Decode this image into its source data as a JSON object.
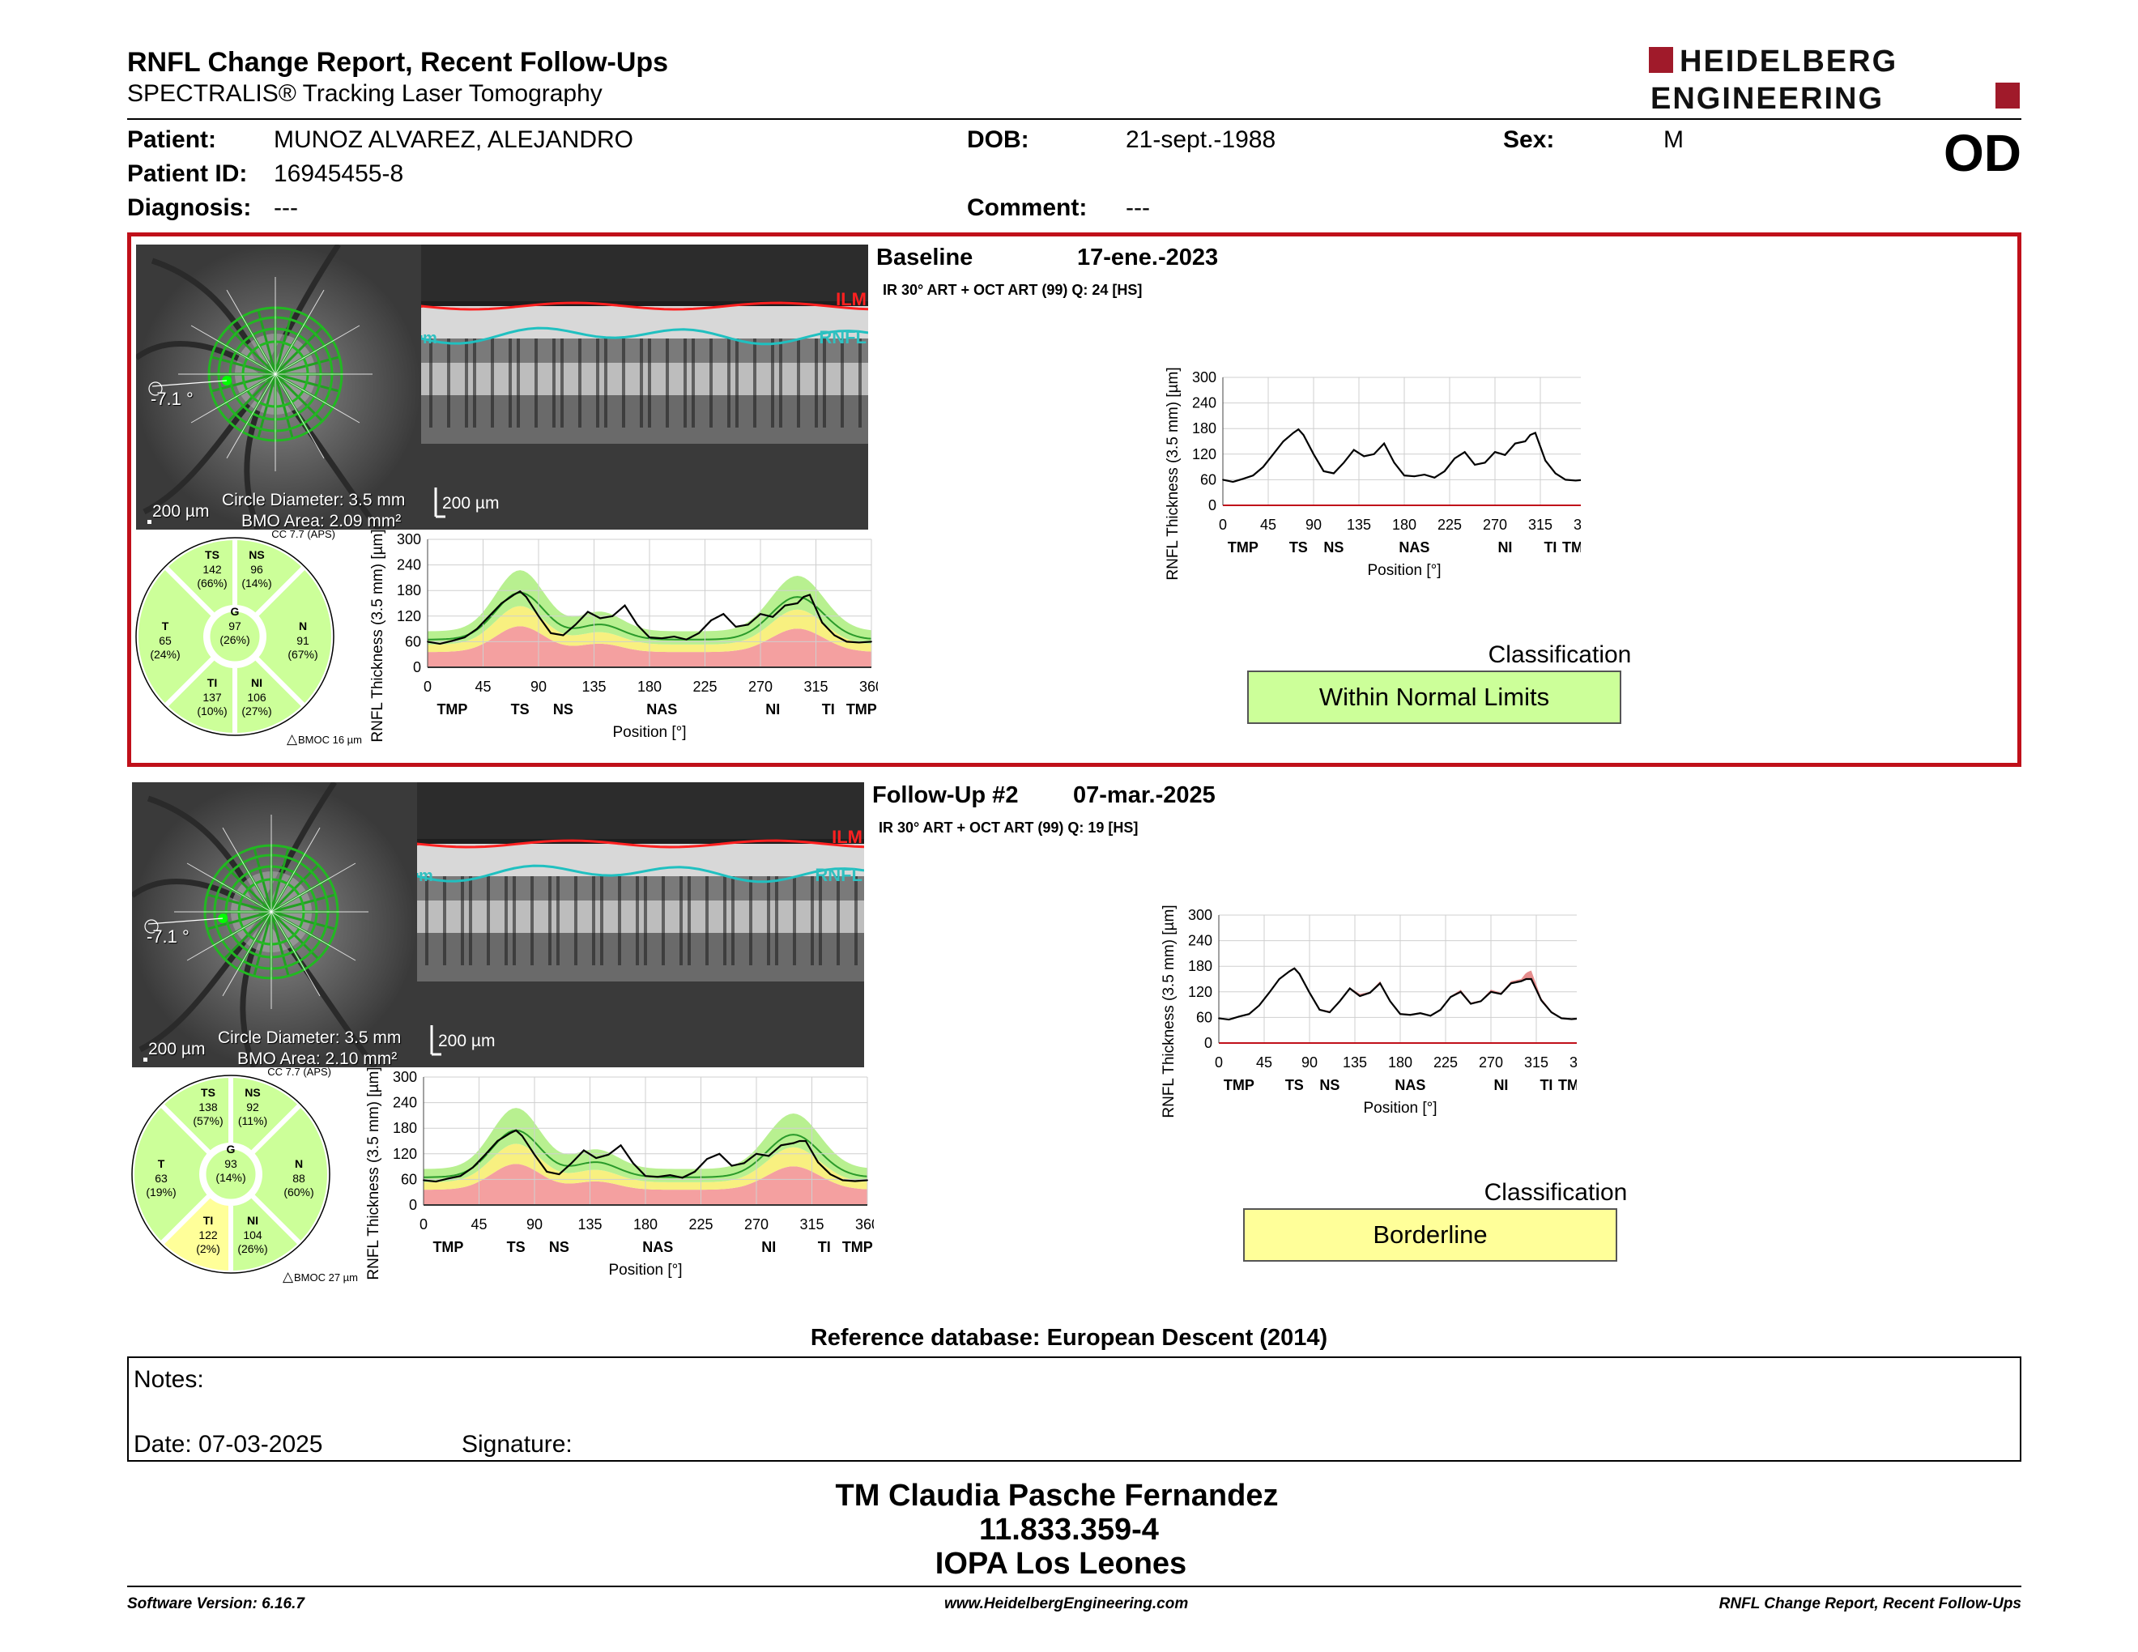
{
  "header": {
    "title": "RNFL Change Report, Recent Follow-Ups",
    "subtitle": "SPECTRALIS® Tracking Laser Tomography",
    "logo_line1": "HEIDELBERG",
    "logo_line2": "ENGINEERING",
    "eye": "OD"
  },
  "patient": {
    "patient_label": "Patient:",
    "patient_value": "MUNOZ ALVAREZ, ALEJANDRO",
    "id_label": "Patient ID:",
    "id_value": "16945455-8",
    "diag_label": "Diagnosis:",
    "diag_value": "---",
    "dob_label": "DOB:",
    "dob_value": "21-sept.-1988",
    "comment_label": "Comment:",
    "comment_value": "---",
    "sex_label": "Sex:",
    "sex_value": "M"
  },
  "exams": [
    {
      "label": "Baseline",
      "date": "17-ene.-2023",
      "scan_info": "IR 30° ART + OCT ART (99) Q: 24 [HS]",
      "angle": "-7.1 °",
      "scale": "200 µm",
      "bscan_scale": "200 µm",
      "circle_diameter": "Circle Diameter: 3.5 mm",
      "bmo_area": "BMO Area: 2.09 mm²",
      "cc": "CC 7.7 (APS)",
      "bmoc": "BMOC 16 µm",
      "sectors": {
        "TS": {
          "v": "142",
          "p": "(66%)",
          "c": "green"
        },
        "NS": {
          "v": "96",
          "p": "(14%)",
          "c": "green"
        },
        "T": {
          "v": "65",
          "p": "(24%)",
          "c": "green"
        },
        "G": {
          "v": "97",
          "p": "(26%)",
          "c": "green"
        },
        "N": {
          "v": "91",
          "p": "(67%)",
          "c": "green"
        },
        "TI": {
          "v": "137",
          "p": "(10%)",
          "c": "green"
        },
        "NI": {
          "v": "106",
          "p": "(27%)",
          "c": "green"
        }
      },
      "classification": "Within Normal Limits",
      "class_color": "#ccff99"
    },
    {
      "label": "Follow-Up #2",
      "date": "07-mar.-2025",
      "scan_info": "IR 30° ART + OCT ART (99) Q: 19 [HS]",
      "angle": "-7.1 °",
      "scale": "200 µm",
      "bscan_scale": "200 µm",
      "circle_diameter": "Circle Diameter: 3.5 mm",
      "bmo_area": "BMO Area: 2.10 mm²",
      "cc": "CC 7.7 (APS)",
      "bmoc": "BMOC 27 µm",
      "sectors": {
        "TS": {
          "v": "138",
          "p": "(57%)",
          "c": "green"
        },
        "NS": {
          "v": "92",
          "p": "(11%)",
          "c": "green"
        },
        "T": {
          "v": "63",
          "p": "(19%)",
          "c": "green"
        },
        "G": {
          "v": "93",
          "p": "(14%)",
          "c": "green"
        },
        "N": {
          "v": "88",
          "p": "(60%)",
          "c": "green"
        },
        "TI": {
          "v": "122",
          "p": "(2%)",
          "c": "yellow"
        },
        "NI": {
          "v": "104",
          "p": "(26%)",
          "c": "green"
        }
      },
      "classification": "Borderline",
      "class_color": "#ffff99"
    }
  ],
  "bscan_labels": {
    "ilm": "ILM",
    "rnfl": "RNFL",
    "m": "m"
  },
  "classification_label": "Classification",
  "colors": {
    "normal": "#ccff99",
    "borderline": "#ffff99",
    "outside": "#f4a0a0",
    "frame": "#c0101a"
  },
  "chart_data": [
    {
      "type": "line",
      "name": "baseline-profile",
      "xlabel": "Position [°]",
      "ylabel": "RNFL Thickness (3.5 mm) [µm]",
      "xlim": [
        0,
        360
      ],
      "ylim": [
        0,
        300
      ],
      "xticks": [
        "0",
        "45",
        "90",
        "135",
        "180",
        "225",
        "270",
        "315",
        "360"
      ],
      "yticks": [
        "0",
        "60",
        "120",
        "180",
        "240",
        "300"
      ],
      "sector_labels": [
        "TMP",
        "TS",
        "NS",
        "NAS",
        "NI",
        "TI",
        "TMP"
      ],
      "x": [
        0,
        10,
        20,
        30,
        40,
        50,
        60,
        70,
        75,
        80,
        90,
        100,
        110,
        120,
        130,
        140,
        150,
        160,
        170,
        180,
        190,
        200,
        210,
        220,
        230,
        240,
        250,
        260,
        270,
        280,
        290,
        300,
        305,
        310,
        320,
        330,
        340,
        350,
        360
      ],
      "y": [
        60,
        55,
        62,
        70,
        90,
        120,
        150,
        170,
        178,
        165,
        120,
        80,
        75,
        100,
        130,
        115,
        120,
        145,
        100,
        70,
        68,
        72,
        65,
        80,
        110,
        125,
        95,
        100,
        125,
        118,
        145,
        150,
        165,
        170,
        105,
        75,
        60,
        58,
        60
      ]
    },
    {
      "type": "line",
      "name": "followup-profile",
      "xlabel": "Position [°]",
      "ylabel": "RNFL Thickness (3.5 mm) [µm]",
      "xlim": [
        0,
        360
      ],
      "ylim": [
        0,
        300
      ],
      "xticks": [
        "0",
        "45",
        "90",
        "135",
        "180",
        "225",
        "270",
        "315",
        "360"
      ],
      "yticks": [
        "0",
        "60",
        "120",
        "180",
        "240",
        "300"
      ],
      "sector_labels": [
        "TMP",
        "TS",
        "NS",
        "NAS",
        "NI",
        "TI",
        "TMP"
      ],
      "x": [
        0,
        10,
        20,
        30,
        40,
        50,
        60,
        70,
        75,
        80,
        90,
        100,
        110,
        120,
        130,
        140,
        150,
        160,
        170,
        180,
        190,
        200,
        210,
        220,
        230,
        240,
        250,
        260,
        270,
        280,
        290,
        300,
        305,
        310,
        320,
        330,
        340,
        350,
        360
      ],
      "y": [
        58,
        55,
        62,
        68,
        88,
        118,
        150,
        168,
        175,
        162,
        118,
        78,
        72,
        98,
        128,
        110,
        118,
        140,
        98,
        68,
        66,
        70,
        64,
        78,
        108,
        120,
        92,
        98,
        120,
        115,
        140,
        145,
        150,
        150,
        100,
        72,
        58,
        56,
        58
      ]
    }
  ],
  "reference_db": "Reference database: European Descent (2014)",
  "notes": {
    "notes_label": "Notes:",
    "date_label": "Date: 07-03-2025",
    "signature_label": "Signature:"
  },
  "signature": {
    "name": "TM Claudia Pasche Fernandez",
    "id": "11.833.359-4",
    "org": "IOPA Los Leones"
  },
  "footer": {
    "version": "Software Version: 6.16.7",
    "website": "www.HeidelbergEngineering.com",
    "report": "RNFL Change Report, Recent Follow-Ups"
  }
}
